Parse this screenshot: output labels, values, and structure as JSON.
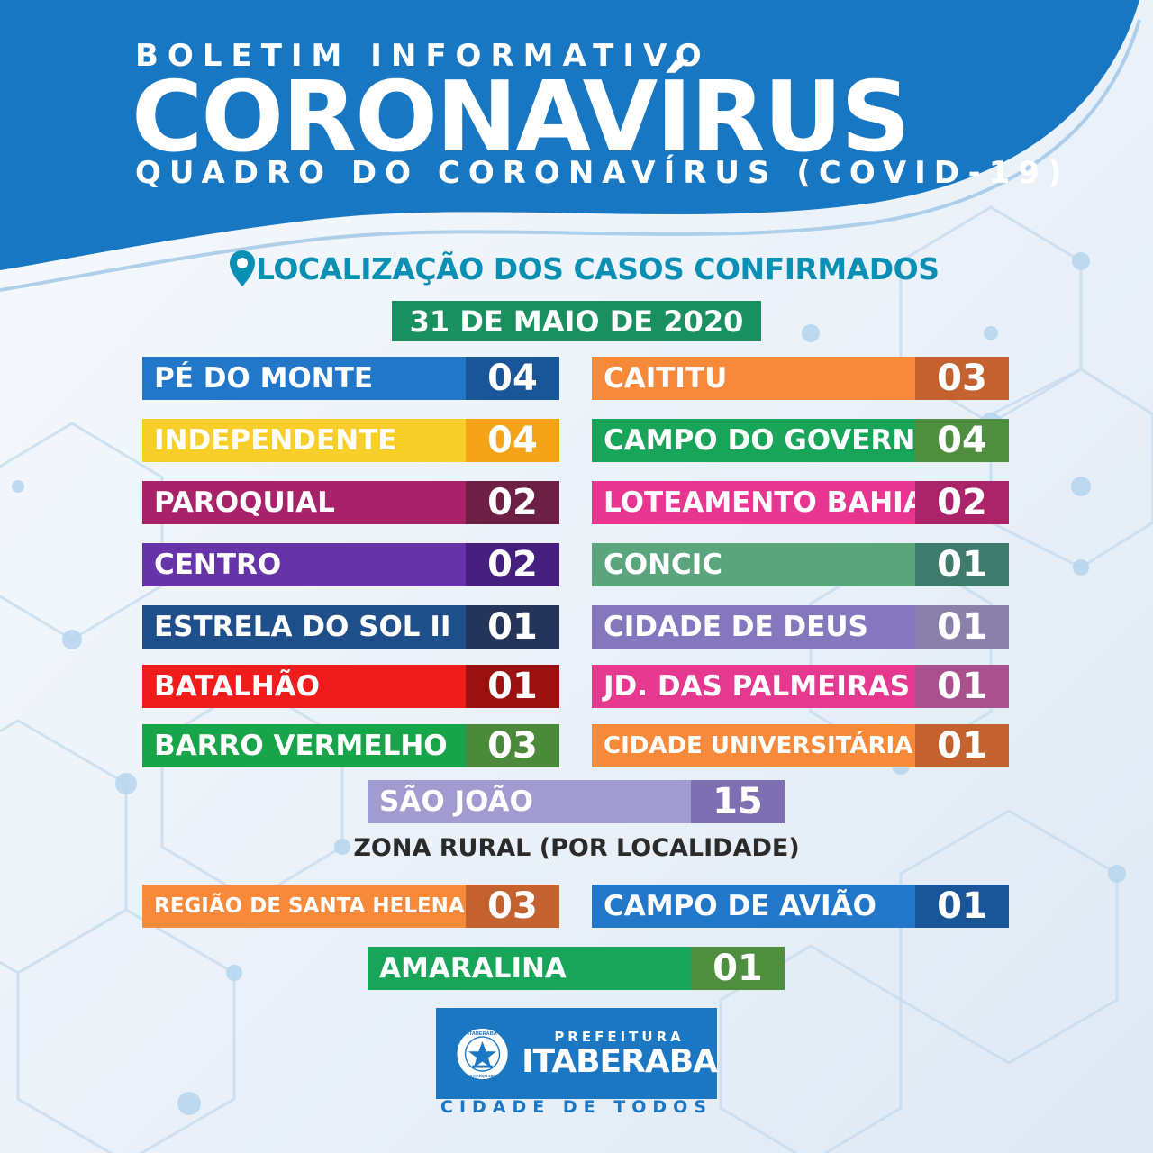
{
  "header": {
    "kicker": "BOLETIM INFORMATIVO",
    "title": "CORONAVÍRUS",
    "subtitle": "QUADRO DO CORONAVÍRUS (COVID-19)"
  },
  "section_title": "LOCALIZAÇÃO DOS CASOS CONFIRMADOS",
  "date": "31 DE MAIO DE 2020",
  "left_column": [
    {
      "name": "PÉ DO MONTE",
      "count": "04",
      "color": "#2377c9",
      "dark": "#1a5697"
    },
    {
      "name": "INDEPENDENTE",
      "count": "04",
      "color": "#f8cf2a",
      "dark": "#f5a418"
    },
    {
      "name": "PAROQUIAL",
      "count": "02",
      "color": "#a8226a",
      "dark": "#6e1f44"
    },
    {
      "name": "CENTRO",
      "count": "02",
      "color": "#6733a9",
      "dark": "#451f80"
    },
    {
      "name": "ESTRELA DO SOL II",
      "count": "01",
      "color": "#1f4f8a",
      "dark": "#253559"
    },
    {
      "name": "BATALHÃO",
      "count": "01",
      "color": "#ef1c1c",
      "dark": "#9b1010"
    },
    {
      "name": "BARRO VERMELHO",
      "count": "03",
      "color": "#18a54a",
      "dark": "#4c8a3b"
    }
  ],
  "right_column": [
    {
      "name": "CAITITU",
      "count": "03",
      "color": "#f6893a",
      "dark": "#c4622f"
    },
    {
      "name": "CAMPO DO GOVERNO",
      "count": "04",
      "color": "#18a459",
      "dark": "#4f8e3f"
    },
    {
      "name": "LOTEAMENTO BAHIA",
      "count": "02",
      "color": "#e8358f",
      "dark": "#ab2368"
    },
    {
      "name": "CONCIC",
      "count": "01",
      "color": "#5aa57b",
      "dark": "#3e7b6d"
    },
    {
      "name": "CIDADE DE DEUS",
      "count": "01",
      "color": "#8477be",
      "dark": "#8a80aa"
    },
    {
      "name": "JD. DAS PALMEIRAS",
      "count": "01",
      "color": "#e4398f",
      "dark": "#a9508f"
    },
    {
      "name": "CIDADE UNIVERSITÁRIA",
      "count": "01",
      "color": "#f6893a",
      "dark": "#c4622f"
    }
  ],
  "center_item": {
    "name": "SÃO JOÃO",
    "count": "15",
    "color": "#a19bcf",
    "dark": "#7d6fb2"
  },
  "rural_title": "ZONA RURAL (POR LOCALIDADE)",
  "rural_left": {
    "name": "REGIÃO DE SANTA HELENA",
    "count": "03",
    "color": "#f6893a",
    "dark": "#c4622f"
  },
  "rural_right": {
    "name": "CAMPO DE AVIÃO",
    "count": "01",
    "color": "#2377c9",
    "dark": "#1a5697"
  },
  "rural_center": {
    "name": "AMARALINA",
    "count": "01",
    "color": "#18a459",
    "dark": "#4f8e3f"
  },
  "logo": {
    "prefix": "PREFEITURA",
    "name": "ITABERABA",
    "seal_top": "ITABERABA",
    "seal_bottom": "28 MARÇO 1877",
    "slogan": "CIDADE DE TODOS"
  },
  "colors": {
    "header_blue": "#1877c2",
    "section_teal": "#0a8fb5",
    "date_green": "#1a9060"
  }
}
